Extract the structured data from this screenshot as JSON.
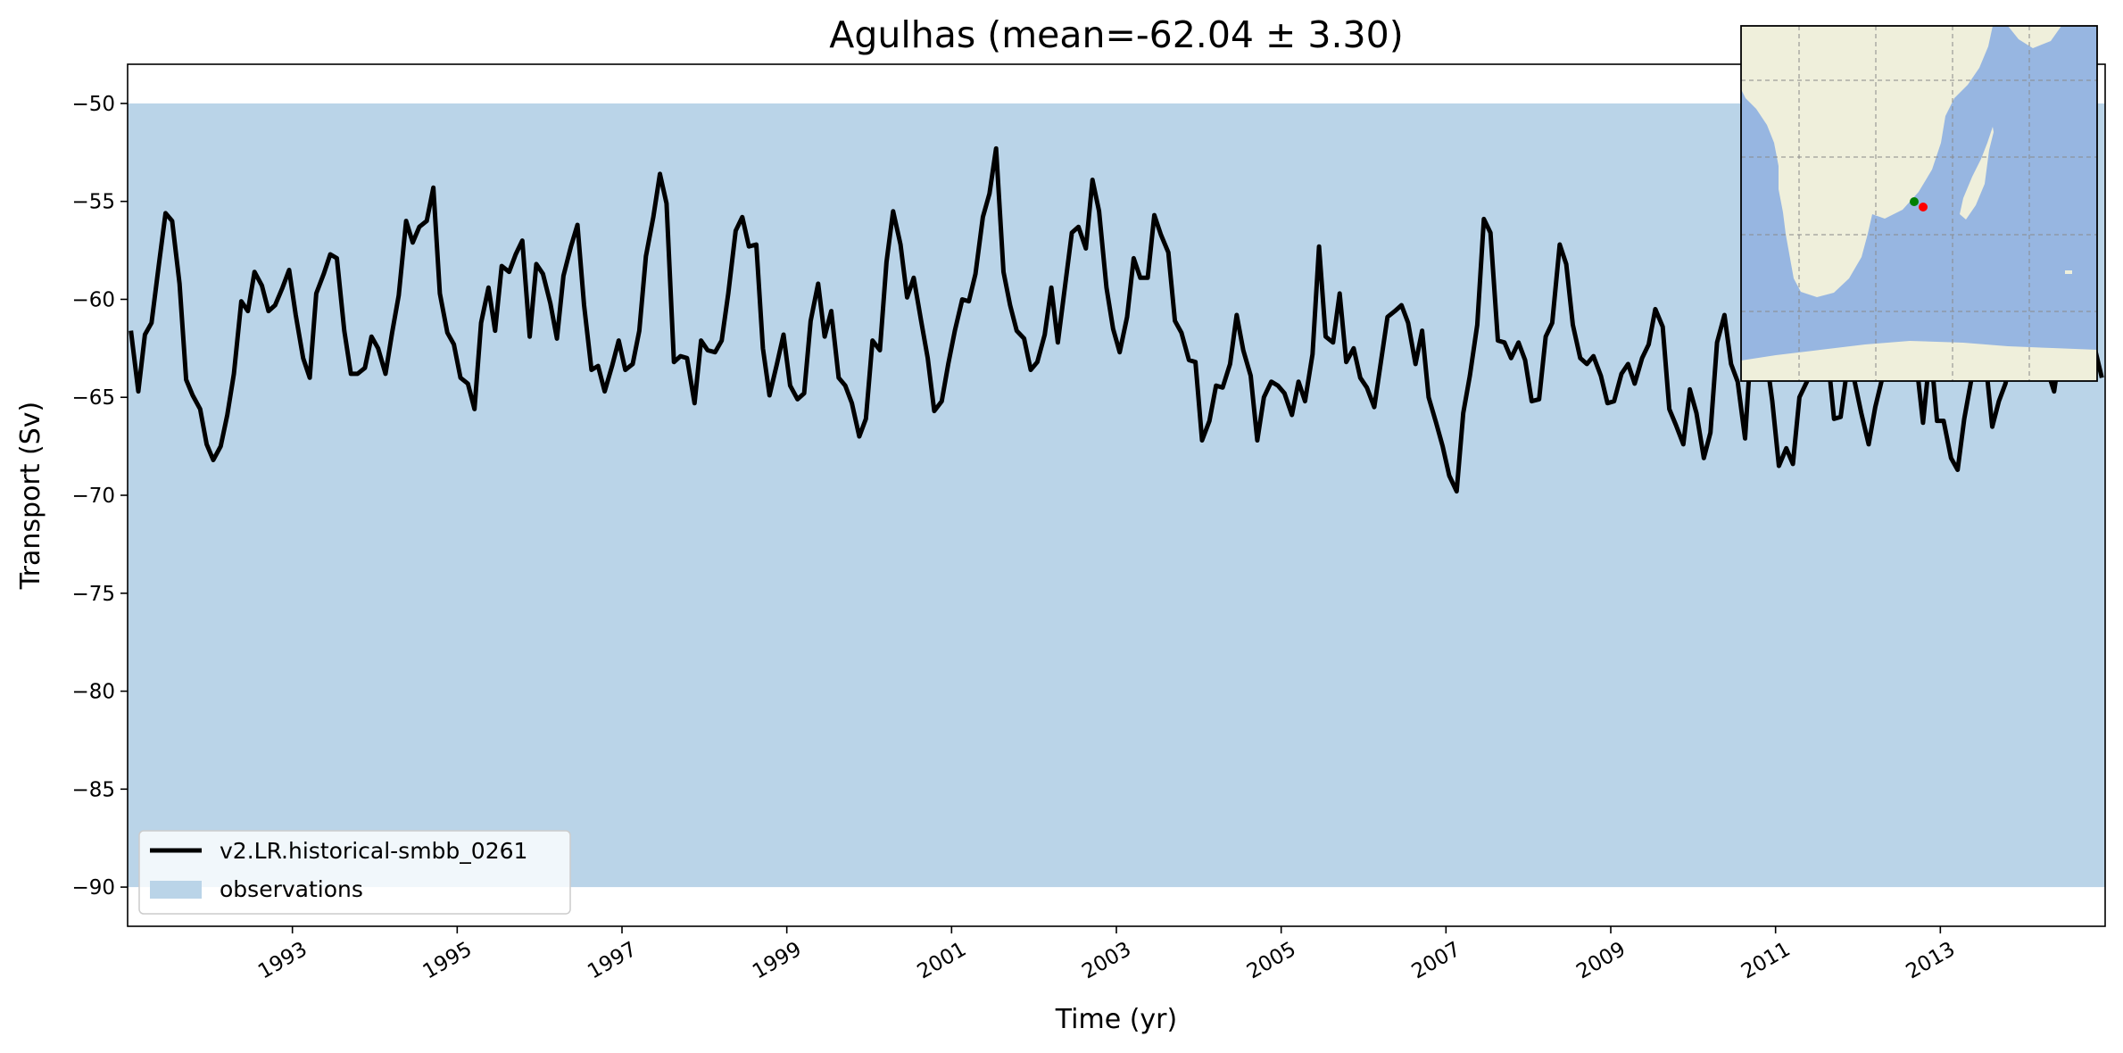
{
  "chart_data": {
    "type": "line",
    "title": "Agulhas (mean=-62.04 ± 3.30)",
    "xlabel": "Time (yr)",
    "ylabel": "Transport (Sv)",
    "xlim": [
      1991.0,
      2015.0
    ],
    "ylim": [
      -92,
      -48
    ],
    "x_ticks": [
      1993,
      1995,
      1997,
      1999,
      2001,
      2003,
      2005,
      2007,
      2009,
      2011,
      2013
    ],
    "x_tick_labels": [
      "1993",
      "1995",
      "1997",
      "1999",
      "2001",
      "2003",
      "2005",
      "2007",
      "2009",
      "2011",
      "2013"
    ],
    "y_ticks": [
      -50,
      -55,
      -60,
      -65,
      -70,
      -75,
      -80,
      -85,
      -90
    ],
    "y_tick_labels": [
      "−50",
      "−55",
      "−60",
      "−65",
      "−70",
      "−75",
      "−80",
      "−85",
      "−90"
    ],
    "grid": false,
    "legend_placement": "lower-left",
    "observations_band": {
      "name": "observations",
      "lower": -90,
      "upper": -50,
      "color": "#bad4e8"
    },
    "series": [
      {
        "name": "v2.LR.historical-smbb_0261",
        "color": "#000000",
        "x": [
          1991.04,
          1991.13,
          1991.21,
          1991.29,
          1991.38,
          1991.46,
          1991.54,
          1991.63,
          1991.71,
          1991.79,
          1991.88,
          1991.96,
          1992.04,
          1992.13,
          1992.21,
          1992.29,
          1992.38,
          1992.46,
          1992.54,
          1992.63,
          1992.71,
          1992.79,
          1992.88,
          1992.96,
          1993.04,
          1993.13,
          1993.21,
          1993.29,
          1993.38,
          1993.46,
          1993.54,
          1993.63,
          1993.71,
          1993.79,
          1993.88,
          1993.96,
          1994.04,
          1994.13,
          1994.21,
          1994.29,
          1994.38,
          1994.46,
          1994.54,
          1994.63,
          1994.71,
          1994.79,
          1994.88,
          1994.96,
          1995.04,
          1995.13,
          1995.21,
          1995.29,
          1995.38,
          1995.46,
          1995.54,
          1995.63,
          1995.71,
          1995.79,
          1995.88,
          1995.96,
          1996.04,
          1996.13,
          1996.21,
          1996.29,
          1996.38,
          1996.46,
          1996.54,
          1996.63,
          1996.71,
          1996.79,
          1996.88,
          1996.96,
          1997.04,
          1997.13,
          1997.21,
          1997.29,
          1997.38,
          1997.46,
          1997.54,
          1997.63,
          1997.71,
          1997.79,
          1997.88,
          1997.96,
          1998.04,
          1998.13,
          1998.21,
          1998.29,
          1998.38,
          1998.46,
          1998.54,
          1998.63,
          1998.71,
          1998.79,
          1998.88,
          1998.96,
          1999.04,
          1999.13,
          1999.21,
          1999.29,
          1999.38,
          1999.46,
          1999.54,
          1999.63,
          1999.71,
          1999.79,
          1999.88,
          1999.96,
          2000.04,
          2000.13,
          2000.21,
          2000.29,
          2000.38,
          2000.46,
          2000.54,
          2000.63,
          2000.71,
          2000.79,
          2000.88,
          2000.96,
          2001.04,
          2001.13,
          2001.21,
          2001.29,
          2001.38,
          2001.46,
          2001.54,
          2001.63,
          2001.71,
          2001.79,
          2001.88,
          2001.96,
          2002.04,
          2002.13,
          2002.21,
          2002.29,
          2002.38,
          2002.46,
          2002.54,
          2002.63,
          2002.71,
          2002.79,
          2002.88,
          2002.96,
          2003.04,
          2003.13,
          2003.21,
          2003.29,
          2003.38,
          2003.46,
          2003.54,
          2003.63,
          2003.71,
          2003.79,
          2003.88,
          2003.96,
          2004.04,
          2004.13,
          2004.21,
          2004.29,
          2004.38,
          2004.46,
          2004.54,
          2004.63,
          2004.71,
          2004.79,
          2004.88,
          2004.96,
          2005.04,
          2005.13,
          2005.21,
          2005.29,
          2005.38,
          2005.46,
          2005.54,
          2005.63,
          2005.71,
          2005.79,
          2005.88,
          2005.96,
          2006.04,
          2006.13,
          2006.21,
          2006.29,
          2006.38,
          2006.46,
          2006.54,
          2006.63,
          2006.71,
          2006.79,
          2006.88,
          2006.96,
          2007.04,
          2007.13,
          2007.21,
          2007.29,
          2007.38,
          2007.46,
          2007.54,
          2007.63,
          2007.71,
          2007.79,
          2007.88,
          2007.96,
          2008.04,
          2008.13,
          2008.21,
          2008.29,
          2008.38,
          2008.46,
          2008.54,
          2008.63,
          2008.71,
          2008.79,
          2008.88,
          2008.96,
          2009.04,
          2009.13,
          2009.21,
          2009.29,
          2009.38,
          2009.46,
          2009.54,
          2009.63,
          2009.71,
          2009.79,
          2009.88,
          2009.96,
          2010.04,
          2010.13,
          2010.21,
          2010.29,
          2010.38,
          2010.46,
          2010.54,
          2010.63,
          2010.71,
          2010.79,
          2010.88,
          2010.96,
          2011.04,
          2011.13,
          2011.21,
          2011.29,
          2011.38,
          2011.46,
          2011.54,
          2011.63,
          2011.71,
          2011.79,
          2011.88,
          2011.96,
          2012.04,
          2012.13,
          2012.21,
          2012.29,
          2012.38,
          2012.46,
          2012.54,
          2012.63,
          2012.71,
          2012.79,
          2012.88,
          2012.96,
          2013.04,
          2013.13,
          2013.21,
          2013.29,
          2013.38,
          2013.46,
          2013.54,
          2013.63,
          2013.71,
          2013.79,
          2013.88,
          2013.96,
          2014.04,
          2014.13,
          2014.21,
          2014.29,
          2014.38,
          2014.46,
          2014.54,
          2014.63,
          2014.71,
          2014.79,
          2014.88,
          2014.96
        ],
        "values": [
          -61.6,
          -64.7,
          -61.8,
          -61.2,
          -58.2,
          -55.6,
          -56.0,
          -59.2,
          -64.1,
          -64.9,
          -65.6,
          -67.4,
          -68.2,
          -67.5,
          -65.9,
          -63.8,
          -60.1,
          -60.6,
          -58.6,
          -59.3,
          -60.6,
          -60.3,
          -59.4,
          -58.5,
          -60.8,
          -63.0,
          -64.0,
          -59.7,
          -58.7,
          -57.7,
          -57.9,
          -61.6,
          -63.8,
          -63.8,
          -63.5,
          -61.9,
          -62.5,
          -63.8,
          -61.7,
          -59.8,
          -56.0,
          -57.1,
          -56.3,
          -56.0,
          -54.3,
          -59.7,
          -61.7,
          -62.3,
          -64.0,
          -64.3,
          -65.6,
          -61.2,
          -59.4,
          -61.6,
          -58.3,
          -58.6,
          -57.7,
          -57.0,
          -61.9,
          -58.2,
          -58.7,
          -60.2,
          -62.0,
          -58.8,
          -57.3,
          -56.2,
          -60.3,
          -63.6,
          -63.4,
          -64.7,
          -63.4,
          -62.1,
          -63.6,
          -63.3,
          -61.6,
          -57.8,
          -55.8,
          -53.6,
          -55.1,
          -63.2,
          -62.9,
          -63.0,
          -65.3,
          -62.1,
          -62.6,
          -62.7,
          -62.1,
          -59.7,
          -56.5,
          -55.8,
          -57.3,
          -57.2,
          -62.5,
          -64.9,
          -63.3,
          -61.8,
          -64.4,
          -65.1,
          -64.8,
          -61.1,
          -59.2,
          -61.9,
          -60.6,
          -64.0,
          -64.4,
          -65.3,
          -67.0,
          -66.1,
          -62.1,
          -62.6,
          -58.1,
          -55.5,
          -57.2,
          -59.9,
          -58.9,
          -61.1,
          -63.0,
          -65.7,
          -65.2,
          -63.3,
          -61.6,
          -60.0,
          -60.1,
          -58.7,
          -55.8,
          -54.6,
          -52.3,
          -58.6,
          -60.3,
          -61.6,
          -62.0,
          -63.6,
          -63.2,
          -61.8,
          -59.4,
          -62.2,
          -59.2,
          -56.6,
          -56.3,
          -57.4,
          -53.9,
          -55.5,
          -59.4,
          -61.5,
          -62.7,
          -60.9,
          -57.9,
          -58.9,
          -58.9,
          -55.7,
          -56.7,
          -57.6,
          -61.1,
          -61.7,
          -63.1,
          -63.2,
          -67.2,
          -66.2,
          -64.4,
          -64.5,
          -63.3,
          -60.8,
          -62.6,
          -63.9,
          -67.2,
          -65.0,
          -64.2,
          -64.4,
          -64.8,
          -65.9,
          -64.2,
          -65.2,
          -62.8,
          -57.3,
          -61.9,
          -62.2,
          -59.7,
          -63.2,
          -62.5,
          -64.0,
          -64.5,
          -65.5,
          -63.2,
          -60.9,
          -60.6,
          -60.3,
          -61.2,
          -63.3,
          -61.6,
          -65.0,
          -66.3,
          -67.5,
          -69.0,
          -69.8,
          -65.8,
          -63.9,
          -61.3,
          -55.9,
          -56.6,
          -62.1,
          -62.2,
          -63.0,
          -62.2,
          -63.1,
          -65.2,
          -65.1,
          -61.9,
          -61.2,
          -57.2,
          -58.2,
          -61.3,
          -63.0,
          -63.3,
          -62.9,
          -63.9,
          -65.3,
          -65.2,
          -63.8,
          -63.3,
          -64.3,
          -63.0,
          -62.3,
          -60.5,
          -61.4,
          -65.6,
          -66.4,
          -67.4,
          -64.6,
          -65.8,
          -68.1,
          -66.8,
          -62.2,
          -60.8,
          -63.3,
          -64.2,
          -67.1,
          -61.8,
          -61.4,
          -62.7,
          -65.2,
          -68.5,
          -67.6,
          -68.4,
          -65.0,
          -64.2,
          -60.7,
          -61.4,
          -62.7,
          -66.1,
          -66.0,
          -63.2,
          -64.2,
          -65.8,
          -67.4,
          -65.5,
          -64.1,
          -62.9,
          -61.3,
          -60.8,
          -62.5,
          -63.3,
          -66.3,
          -62.5,
          -66.2,
          -66.2,
          -68.1,
          -68.7,
          -66.1,
          -64.0,
          -62.1,
          -62.8,
          -66.5,
          -65.2,
          -64.3,
          -62.5,
          -61.7,
          -62.4,
          -62.0,
          -61.7,
          -63.5,
          -64.7,
          -62.4,
          -61.7,
          -63.2,
          -62.9,
          -62.0,
          -62.6,
          -64.0
        ]
      }
    ],
    "inset_map": {
      "ocean_color": "#97b6e1",
      "land_color": "#efefdb",
      "points": [
        {
          "color": "#007f00",
          "lon": 24.0,
          "lat": -34.0
        },
        {
          "color": "#ff0000",
          "lon": 25.0,
          "lat": -35.0
        }
      ]
    }
  }
}
